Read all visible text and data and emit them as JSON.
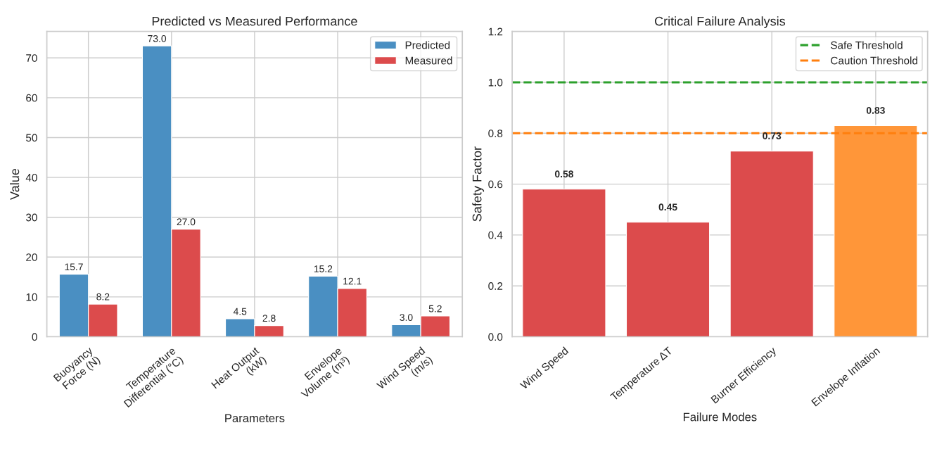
{
  "chart_data": [
    {
      "type": "bar",
      "title": "Predicted vs Measured Performance",
      "xlabel": "Parameters",
      "ylabel": "Value",
      "categories": [
        "Buoyancy\nForce (N)",
        "Temperature\nDifferential (°C)",
        "Heat Output\n(kW)",
        "Envelope\nVolume (m³)",
        "Wind Speed\n(m/s)"
      ],
      "series": [
        {
          "name": "Predicted",
          "color": "#4a8fc2",
          "values": [
            15.7,
            73.0,
            4.5,
            15.2,
            3.0
          ],
          "value_labels": [
            "15.7",
            "73.0",
            "4.5",
            "15.2",
            "3.0"
          ]
        },
        {
          "name": "Measured",
          "color": "#dc4b4c",
          "values": [
            8.2,
            27.0,
            2.8,
            12.1,
            5.2
          ],
          "value_labels": [
            "8.2",
            "27.0",
            "2.8",
            "12.1",
            "5.2"
          ]
        }
      ],
      "ylim": [
        0,
        76.65
      ],
      "yticks": [
        0,
        10,
        20,
        30,
        40,
        50,
        60,
        70
      ],
      "grid": true,
      "legend": "top right"
    },
    {
      "type": "bar",
      "title": "Critical Failure Analysis",
      "xlabel": "Failure Modes",
      "ylabel": "Safety Factor",
      "categories": [
        "Wind Speed",
        "Temperature ΔT",
        "Burner Efficiency",
        "Envelope Inflation"
      ],
      "values": [
        0.58,
        0.45,
        0.73,
        0.83
      ],
      "colors": [
        "#dc4b4c",
        "#dc4b4c",
        "#dc4b4c",
        "#ff9639"
      ],
      "value_labels": [
        "0.58",
        "0.45",
        "0.73",
        "0.83"
      ],
      "ref_lines": [
        {
          "axis": "y",
          "value": 1.0,
          "label": "Safe Threshold",
          "color": "#2ca02c",
          "line_style": "dashed"
        },
        {
          "axis": "y",
          "value": 0.8,
          "label": "Caution Threshold",
          "color": "#ff7f0e",
          "line_style": "dashed"
        }
      ],
      "ylim": [
        0,
        1.2
      ],
      "yticks": [
        {
          "value": 0,
          "label": "0.0"
        },
        {
          "value": 0.2,
          "label": "0.2"
        },
        {
          "value": 0.4,
          "label": "0.4"
        },
        {
          "value": 0.6,
          "label": "0.6"
        },
        {
          "value": 0.8,
          "label": "0.8"
        },
        {
          "value": 1.0,
          "label": "1.0"
        },
        {
          "value": 1.2,
          "label": "1.2"
        }
      ],
      "grid": true,
      "legend": "top right"
    }
  ]
}
